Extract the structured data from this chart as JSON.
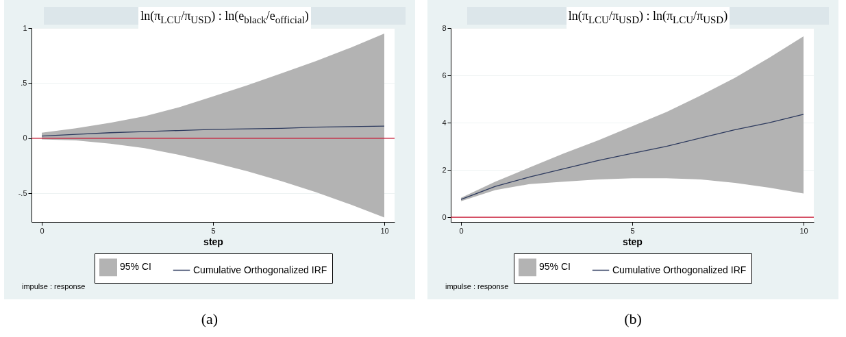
{
  "chart_data": [
    {
      "type": "line",
      "title": "ln(π$_{LCU}$/π$_{USD}$) : ln(e$_{black}$/e$_{official}$)",
      "xlabel": "step",
      "x": [
        0,
        1,
        2,
        3,
        4,
        5,
        6,
        7,
        8,
        9,
        10
      ],
      "series": [
        {
          "name": "Cumulative Orthogonalized IRF",
          "color": "#2d3a5e",
          "values": [
            0.02,
            0.035,
            0.05,
            0.06,
            0.07,
            0.08,
            0.085,
            0.09,
            0.1,
            0.105,
            0.11
          ],
          "lower": [
            -0.01,
            -0.02,
            -0.05,
            -0.09,
            -0.15,
            -0.22,
            -0.3,
            -0.39,
            -0.49,
            -0.6,
            -0.72
          ],
          "upper": [
            0.05,
            0.09,
            0.14,
            0.2,
            0.28,
            0.38,
            0.48,
            0.59,
            0.7,
            0.82,
            0.95
          ]
        }
      ],
      "xlim": [
        -0.3,
        10.3
      ],
      "xticks": [
        0,
        5,
        10
      ],
      "ylim": [
        -0.76,
        1
      ],
      "yticks": [
        {
          "value": -0.5,
          "label": "-.5"
        },
        0,
        {
          "value": 0.5,
          "label": ".5"
        },
        1
      ],
      "ref_lines": [
        {
          "axis": "y",
          "value": 0,
          "color": "#c8102e"
        }
      ],
      "grid": "y",
      "legend": "bottom",
      "annotations": [
        "95% CI",
        "impulse : response",
        "(a)"
      ]
    },
    {
      "type": "line",
      "title": "ln(π$_{LCU}$/π$_{USD}$) : ln(π$_{LCU}$/π$_{USD}$)",
      "xlabel": "step",
      "x": [
        0,
        1,
        2,
        3,
        4,
        5,
        6,
        7,
        8,
        9,
        10
      ],
      "series": [
        {
          "name": "Cumulative Orthogonalized IRF",
          "color": "#2d3a5e",
          "values": [
            0.75,
            1.3,
            1.7,
            2.05,
            2.4,
            2.7,
            3.0,
            3.35,
            3.7,
            4.0,
            4.35
          ],
          "lower": [
            0.68,
            1.15,
            1.4,
            1.5,
            1.6,
            1.65,
            1.65,
            1.6,
            1.45,
            1.25,
            1.0
          ],
          "upper": [
            0.82,
            1.5,
            2.1,
            2.7,
            3.25,
            3.85,
            4.45,
            5.15,
            5.9,
            6.75,
            7.65
          ]
        }
      ],
      "xlim": [
        -0.3,
        10.3
      ],
      "xticks": [
        0,
        5,
        10
      ],
      "ylim": [
        -0.2,
        8
      ],
      "yticks": [
        0,
        2,
        4,
        6,
        8
      ],
      "ref_lines": [
        {
          "axis": "y",
          "value": 0,
          "color": "#c8102e"
        }
      ],
      "grid": "y",
      "legend": "bottom",
      "annotations": [
        "95% CI",
        "impulse : response",
        "(b)"
      ]
    }
  ]
}
